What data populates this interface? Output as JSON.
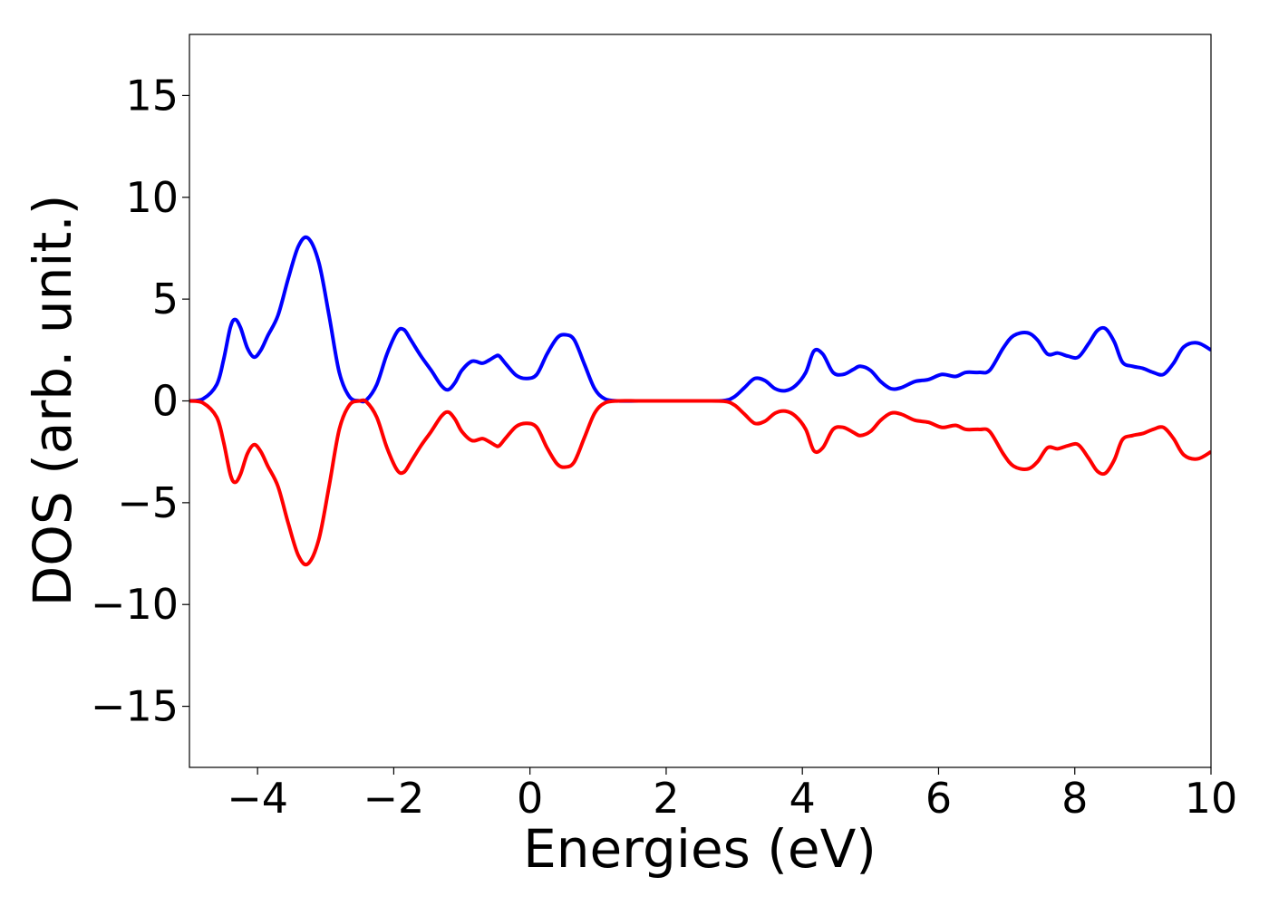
{
  "chart_data": {
    "type": "line",
    "title": "",
    "xlabel": "Energies (eV)",
    "ylabel": "DOS (arb. unit.)",
    "xlim": [
      -5,
      10
    ],
    "ylim": [
      -18,
      18
    ],
    "grid": false,
    "legend": "none",
    "x_ticks": [
      -4,
      -2,
      0,
      2,
      4,
      6,
      8,
      10
    ],
    "x_tick_labels": [
      "−4",
      "−2",
      "0",
      "2",
      "4",
      "6",
      "8",
      "10"
    ],
    "y_ticks": [
      15,
      10,
      5,
      0,
      -5,
      -10,
      -15
    ],
    "y_tick_labels": [
      "15",
      "10",
      "5",
      "0",
      "−5",
      "−10",
      "−15"
    ],
    "series": [
      {
        "color": "#0000ff",
        "x": [
          -5.0,
          -4.8,
          -4.6,
          -4.5,
          -4.4,
          -4.33,
          -4.25,
          -4.15,
          -4.05,
          -3.95,
          -3.85,
          -3.7,
          -3.55,
          -3.4,
          -3.26,
          -3.1,
          -2.95,
          -2.8,
          -2.65,
          -2.5,
          -2.4,
          -2.25,
          -2.1,
          -1.95,
          -1.85,
          -1.75,
          -1.6,
          -1.45,
          -1.3,
          -1.2,
          -1.1,
          -1.0,
          -0.85,
          -0.7,
          -0.6,
          -0.5,
          -0.45,
          -0.35,
          -0.2,
          -0.05,
          0.1,
          0.25,
          0.4,
          0.52,
          0.65,
          0.8,
          0.95,
          1.1,
          1.3,
          1.6,
          2.0,
          2.5,
          2.85,
          3.0,
          3.15,
          3.3,
          3.45,
          3.6,
          3.75,
          3.9,
          4.05,
          4.17,
          4.3,
          4.45,
          4.6,
          4.75,
          4.85,
          5.0,
          5.15,
          5.3,
          5.45,
          5.65,
          5.85,
          6.05,
          6.25,
          6.4,
          6.6,
          6.75,
          6.95,
          7.1,
          7.3,
          7.45,
          7.6,
          7.75,
          7.9,
          8.05,
          8.2,
          8.33,
          8.45,
          8.58,
          8.7,
          8.85,
          9.0,
          9.15,
          9.3,
          9.45,
          9.6,
          9.8,
          10.0
        ],
        "y": [
          0.0,
          0.1,
          0.8,
          2.0,
          3.6,
          4.0,
          3.6,
          2.6,
          2.15,
          2.5,
          3.2,
          4.2,
          6.0,
          7.6,
          8.0,
          6.8,
          4.2,
          1.4,
          0.2,
          0.0,
          0.05,
          0.8,
          2.3,
          3.4,
          3.5,
          3.0,
          2.2,
          1.5,
          0.75,
          0.55,
          0.9,
          1.5,
          1.95,
          1.85,
          2.0,
          2.2,
          2.2,
          1.8,
          1.25,
          1.1,
          1.3,
          2.3,
          3.1,
          3.25,
          3.0,
          1.8,
          0.6,
          0.1,
          0.0,
          0.0,
          0.0,
          0.0,
          0.02,
          0.2,
          0.65,
          1.1,
          1.0,
          0.6,
          0.5,
          0.75,
          1.4,
          2.45,
          2.3,
          1.4,
          1.3,
          1.55,
          1.7,
          1.5,
          0.95,
          0.6,
          0.65,
          0.95,
          1.05,
          1.3,
          1.2,
          1.4,
          1.4,
          1.5,
          2.6,
          3.2,
          3.35,
          3.0,
          2.3,
          2.35,
          2.2,
          2.15,
          2.8,
          3.45,
          3.55,
          2.9,
          1.9,
          1.7,
          1.6,
          1.4,
          1.3,
          1.85,
          2.65,
          2.85,
          2.5
        ]
      },
      {
        "color": "#ff0000",
        "x": [
          -5.0,
          -4.8,
          -4.6,
          -4.5,
          -4.4,
          -4.33,
          -4.25,
          -4.15,
          -4.05,
          -3.95,
          -3.85,
          -3.7,
          -3.55,
          -3.4,
          -3.26,
          -3.1,
          -2.95,
          -2.8,
          -2.65,
          -2.5,
          -2.4,
          -2.25,
          -2.1,
          -1.95,
          -1.85,
          -1.75,
          -1.6,
          -1.45,
          -1.3,
          -1.2,
          -1.1,
          -1.0,
          -0.85,
          -0.7,
          -0.6,
          -0.5,
          -0.45,
          -0.35,
          -0.2,
          -0.05,
          0.1,
          0.25,
          0.4,
          0.52,
          0.65,
          0.8,
          0.95,
          1.1,
          1.3,
          1.6,
          2.0,
          2.5,
          2.85,
          3.0,
          3.15,
          3.3,
          3.45,
          3.6,
          3.75,
          3.9,
          4.05,
          4.17,
          4.3,
          4.45,
          4.6,
          4.75,
          4.85,
          5.0,
          5.15,
          5.3,
          5.45,
          5.65,
          5.85,
          6.05,
          6.25,
          6.4,
          6.6,
          6.75,
          6.95,
          7.1,
          7.3,
          7.45,
          7.6,
          7.75,
          7.9,
          8.05,
          8.2,
          8.33,
          8.45,
          8.58,
          8.7,
          8.85,
          9.0,
          9.15,
          9.3,
          9.45,
          9.6,
          9.8,
          10.0
        ],
        "y": [
          0.0,
          -0.1,
          -0.8,
          -2.0,
          -3.6,
          -4.0,
          -3.6,
          -2.6,
          -2.15,
          -2.5,
          -3.2,
          -4.2,
          -6.0,
          -7.6,
          -8.0,
          -6.8,
          -4.2,
          -1.4,
          -0.2,
          0.0,
          -0.05,
          -0.8,
          -2.3,
          -3.4,
          -3.5,
          -3.0,
          -2.2,
          -1.5,
          -0.75,
          -0.55,
          -0.9,
          -1.5,
          -1.95,
          -1.85,
          -2.0,
          -2.2,
          -2.2,
          -1.8,
          -1.25,
          -1.1,
          -1.3,
          -2.3,
          -3.1,
          -3.25,
          -3.0,
          -1.8,
          -0.6,
          -0.1,
          0.0,
          0.0,
          0.0,
          0.0,
          -0.02,
          -0.2,
          -0.65,
          -1.1,
          -1.0,
          -0.6,
          -0.5,
          -0.75,
          -1.4,
          -2.45,
          -2.3,
          -1.4,
          -1.3,
          -1.55,
          -1.7,
          -1.5,
          -0.95,
          -0.6,
          -0.65,
          -0.95,
          -1.05,
          -1.3,
          -1.2,
          -1.4,
          -1.4,
          -1.5,
          -2.6,
          -3.2,
          -3.35,
          -3.0,
          -2.3,
          -2.35,
          -2.2,
          -2.15,
          -2.8,
          -3.45,
          -3.55,
          -2.9,
          -1.9,
          -1.7,
          -1.6,
          -1.4,
          -1.3,
          -1.85,
          -2.65,
          -2.85,
          -2.5
        ]
      }
    ]
  }
}
